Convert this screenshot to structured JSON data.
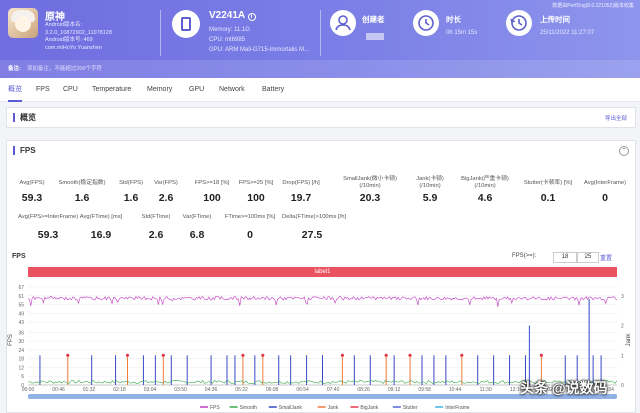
{
  "app": {
    "name": "原神",
    "lines": [
      "Android版本名:",
      "3.2.0_10872902_11078128",
      "Android版本号: 469",
      "com.miHoYo.Yuanshen"
    ]
  },
  "device": {
    "name": "V2241A",
    "lines": [
      "Memory: 11.1G",
      "CPU: mt6985",
      "GPU: ARM Mali-G715-Immortalis M..."
    ]
  },
  "stats": [
    {
      "label": "创建者",
      "value": ""
    },
    {
      "label": "时长",
      "value": "0h 15m 15s"
    },
    {
      "label": "上传时间",
      "value": "25/11/2022 11:27:07"
    }
  ],
  "top_link": "数据由PerfDog(8.0.221052)版本收集",
  "note": {
    "label": "备注:",
    "placeholder": "添加备注，不能超过200个字符"
  },
  "tabs": [
    "概览",
    "FPS",
    "CPU",
    "Temperature",
    "Memory",
    "GPU",
    "Network",
    "Battery"
  ],
  "overview": {
    "title": "概览",
    "link": "导出全部"
  },
  "fps_panel": {
    "title": "FPS",
    "collapse": "⌃"
  },
  "metrics_row1": [
    {
      "label": "Avg(FPS)",
      "value": "59.3"
    },
    {
      "label": "Smooth(稳定指数)",
      "value": "1.6"
    },
    {
      "label": "Std(FPS)",
      "value": "1.6"
    },
    {
      "label": "Var(FPS)",
      "value": "2.6"
    },
    {
      "label": "FPS>=18 [%]",
      "value": "100"
    },
    {
      "label": "FPS>=25 [%]",
      "value": "100"
    },
    {
      "label": "Drop(FPS) [/h]",
      "value": "19.7"
    },
    {
      "label": "SmallJank(微小卡顿)\n(/10min)",
      "value": "20.3"
    },
    {
      "label": "Jank(卡顿)\n(/10min)",
      "value": "5.9"
    },
    {
      "label": "BigJank(严重卡顿)\n(/10min)",
      "value": "4.6"
    },
    {
      "label": "Stutter(卡顿率) [%]",
      "value": "0.1"
    },
    {
      "label": "Avg(InterFrame)",
      "value": "0"
    }
  ],
  "metrics_row2": [
    {
      "label": "Avg(FPS>=InterFrame)",
      "value": "59.3"
    },
    {
      "label": "Avg(FTime) [ms]",
      "value": "16.9"
    },
    {
      "label": "Std(FTime)",
      "value": "2.6"
    },
    {
      "label": "Var(FTime)",
      "value": "6.8"
    },
    {
      "label": "FTime>=100ms [%]",
      "value": "0"
    },
    {
      "label": "Delta(FTime)>100ms [/h]",
      "value": "27.5"
    }
  ],
  "chart_controls": {
    "title": "FPS",
    "fps_label": "FPS(>=):",
    "v1": "18",
    "v2": "25",
    "reset": "重置"
  },
  "label_bar": "label1",
  "brand": "头条 @说数码",
  "chart_data": {
    "type": "line",
    "y_left": {
      "label": "FPS",
      "ticks": [
        "0",
        "6",
        "12",
        "18",
        "24",
        "30",
        "36",
        "43",
        "49",
        "55",
        "61",
        "67"
      ],
      "range": [
        0,
        67
      ]
    },
    "y_right": {
      "label": "Jank",
      "ticks": [
        "0",
        "1",
        "2",
        "3"
      ],
      "range": [
        0,
        3.3
      ]
    },
    "x_ticks": [
      "00:00",
      "00:46",
      "01:32",
      "02:18",
      "03:04",
      "03:50",
      "04:36",
      "05:22",
      "06:08",
      "06:54",
      "07:40",
      "08:26",
      "09:12",
      "09:58",
      "10:44",
      "11:30",
      "12:16",
      "13:02",
      "13:48",
      "14:34"
    ],
    "legend": [
      {
        "name": "FPS",
        "color": "#c23cc2"
      },
      {
        "name": "Smooth",
        "color": "#3ba84a"
      },
      {
        "name": "SmallJank",
        "color": "#3a48c8"
      },
      {
        "name": "Jank",
        "color": "#f07b3a"
      },
      {
        "name": "BigJank",
        "color": "#e0384a"
      },
      {
        "name": "Stutter",
        "color": "#4f62d8"
      },
      {
        "name": "InterFrame",
        "color": "#3fb0e8"
      }
    ],
    "fps_baseline": 59.3,
    "big_jank_min": [
      1.0,
      2.5,
      3.4,
      5.4,
      5.9,
      7.9,
      9.0,
      9.6,
      10.9,
      12.9
    ],
    "small_jank_min": [
      0.3,
      1.6,
      2.2,
      2.9,
      3.2,
      3.6,
      4.0,
      4.6,
      5.0,
      5.2,
      5.7,
      6.3,
      6.6,
      7.0,
      7.4,
      8.2,
      8.6,
      9.2,
      9.9,
      10.2,
      10.5,
      11.3,
      11.7,
      12.1,
      12.5,
      13.5,
      13.8,
      14.2,
      14.4
    ],
    "stutter_min": [
      12.6,
      14.1
    ]
  }
}
